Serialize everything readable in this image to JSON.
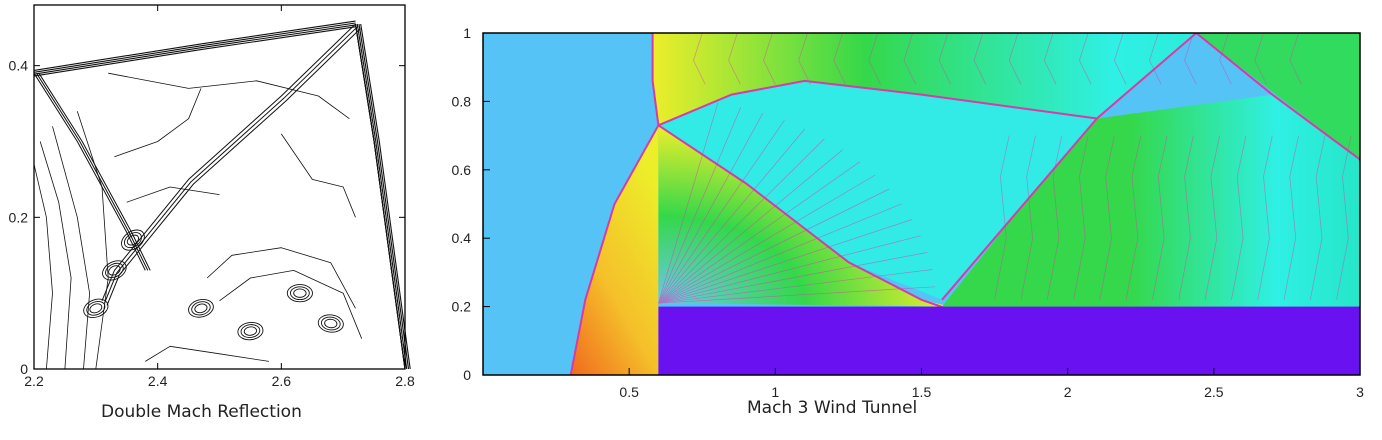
{
  "chart_data": [
    {
      "type": "contour",
      "title": "Double Mach Reflection",
      "xlim": [
        2.2,
        2.8
      ],
      "ylim": [
        0,
        0.48
      ],
      "xticks": [
        "2.2",
        "2.4",
        "2.6",
        "2.8"
      ],
      "xtick_values": [
        2.2,
        2.4,
        2.6,
        2.8
      ],
      "yticks": [
        "0",
        "0.2",
        "0.4"
      ],
      "ytick_values": [
        0,
        0.2,
        0.4
      ],
      "colors": {
        "lines": "#111111",
        "background": "#ffffff"
      },
      "features": {
        "incident_shock": [
          [
            2.2,
            0.39
          ],
          [
            2.47,
            0.425
          ],
          [
            2.72,
            0.455
          ]
        ],
        "reflected_shock": [
          [
            2.72,
            0.455
          ],
          [
            2.6,
            0.36
          ],
          [
            2.45,
            0.25
          ],
          [
            2.33,
            0.13
          ],
          [
            2.31,
            0.09
          ]
        ],
        "slip_line_top": [
          [
            2.2,
            0.39
          ],
          [
            2.27,
            0.3
          ],
          [
            2.35,
            0.18
          ],
          [
            2.38,
            0.13
          ]
        ],
        "mach_stem": [
          [
            2.72,
            0.455
          ],
          [
            2.75,
            0.3
          ],
          [
            2.78,
            0.12
          ],
          [
            2.8,
            0.0
          ]
        ],
        "vortex_centers": [
          [
            2.36,
            0.17
          ],
          [
            2.33,
            0.13
          ],
          [
            2.3,
            0.08
          ],
          [
            2.47,
            0.08
          ],
          [
            2.55,
            0.05
          ],
          [
            2.63,
            0.1
          ],
          [
            2.68,
            0.06
          ]
        ]
      }
    },
    {
      "type": "heatmap",
      "title": "Mach 3 Wind Tunnel",
      "xlim": [
        0,
        3
      ],
      "ylim": [
        0,
        1
      ],
      "xticks": [
        "0.5",
        "1",
        "1.5",
        "2",
        "2.5",
        "3"
      ],
      "xtick_values": [
        0.5,
        1,
        1.5,
        2,
        2.5,
        3
      ],
      "yticks": [
        "0",
        "0.2",
        "0.4",
        "0.6",
        "0.8",
        "1"
      ],
      "ytick_values": [
        0,
        0.2,
        0.4,
        0.6,
        0.8,
        1
      ],
      "colors": {
        "freestream": "#55C3F5",
        "step": "#6A11F2",
        "shock_line": "#D63BA8",
        "post_shock_hot": "#F06A1E",
        "post_shock_warm": "#F5C02A",
        "yellow": "#EDEE2A",
        "green": "#34D84A",
        "cyan": "#2FF0E4",
        "lightblue": "#6FC6F2",
        "teal": "#25E6C8"
      },
      "regions": {
        "step": {
          "x": [
            0.6,
            3
          ],
          "y": [
            0,
            0.2
          ]
        },
        "bow_shock": [
          [
            0.3,
            0
          ],
          [
            0.35,
            0.22
          ],
          [
            0.45,
            0.5
          ],
          [
            0.6,
            0.73
          ],
          [
            0.58,
            0.86
          ],
          [
            0.58,
            1
          ]
        ],
        "triple_point": [
          0.6,
          0.73
        ],
        "reflected_shock": [
          [
            0.6,
            0.73
          ],
          [
            0.9,
            0.56
          ],
          [
            1.25,
            0.33
          ],
          [
            1.5,
            0.22
          ],
          [
            1.6,
            0.19
          ]
        ],
        "shock_to_top": [
          [
            1.57,
            0.22
          ],
          [
            1.85,
            0.5
          ],
          [
            2.1,
            0.75
          ],
          [
            2.44,
            1
          ]
        ],
        "shear_layer": [
          [
            0.6,
            0.73
          ],
          [
            0.85,
            0.82
          ],
          [
            1.1,
            0.86
          ],
          [
            1.5,
            0.82
          ],
          [
            2.1,
            0.75
          ]
        ],
        "top_reflection": [
          [
            2.44,
            1
          ],
          [
            2.7,
            0.82
          ],
          [
            3,
            0.63
          ]
        ],
        "expansion_corner": [
          0.6,
          0.21
        ]
      }
    }
  ],
  "captions": {
    "left": "Double Mach Reflection",
    "right": "Mach 3 Wind Tunnel"
  }
}
